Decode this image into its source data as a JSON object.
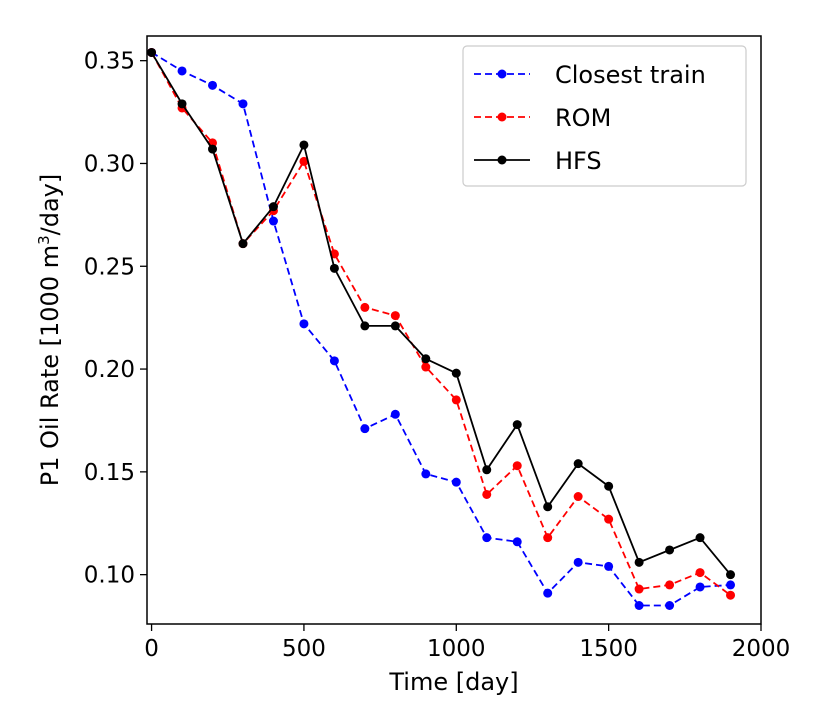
{
  "chart_data": {
    "type": "line",
    "title": "",
    "xlabel": "Time [day]",
    "ylabel_parts": [
      "P1 Oil Rate [1000 m",
      "3",
      "/day]"
    ],
    "xlim": [
      -15,
      2000
    ],
    "ylim": [
      0.076,
      0.362
    ],
    "xticks": [
      0,
      500,
      1000,
      1500,
      2000
    ],
    "xtick_labels": [
      "0",
      "500",
      "1000",
      "1500",
      "2000"
    ],
    "yticks": [
      0.1,
      0.15,
      0.2,
      0.25,
      0.3,
      0.35
    ],
    "ytick_labels": [
      "0.10",
      "0.15",
      "0.20",
      "0.25",
      "0.30",
      "0.35"
    ],
    "grid": false,
    "legend_position": "top-right",
    "x": [
      0,
      100,
      200,
      300,
      400,
      500,
      600,
      700,
      800,
      900,
      1000,
      1100,
      1200,
      1300,
      1400,
      1500,
      1600,
      1700,
      1800,
      1900
    ],
    "series": [
      {
        "name": "Closest train",
        "color": "#0000ff",
        "dashed": true,
        "values": [
          0.354,
          0.345,
          0.338,
          0.329,
          0.272,
          0.222,
          0.204,
          0.171,
          0.178,
          0.149,
          0.145,
          0.118,
          0.116,
          0.091,
          0.106,
          0.104,
          0.085,
          0.085,
          0.094,
          0.095
        ]
      },
      {
        "name": "ROM",
        "color": "#ff0000",
        "dashed": true,
        "values": [
          0.354,
          0.327,
          0.31,
          0.261,
          0.277,
          0.301,
          0.256,
          0.23,
          0.226,
          0.201,
          0.185,
          0.139,
          0.153,
          0.118,
          0.138,
          0.127,
          0.093,
          0.095,
          0.101,
          0.09
        ]
      },
      {
        "name": "HFS",
        "color": "#000000",
        "dashed": false,
        "values": [
          0.354,
          0.329,
          0.307,
          0.261,
          0.279,
          0.309,
          0.249,
          0.221,
          0.221,
          0.205,
          0.198,
          0.151,
          0.173,
          0.133,
          0.154,
          0.143,
          0.106,
          0.112,
          0.118,
          0.1
        ]
      }
    ]
  }
}
